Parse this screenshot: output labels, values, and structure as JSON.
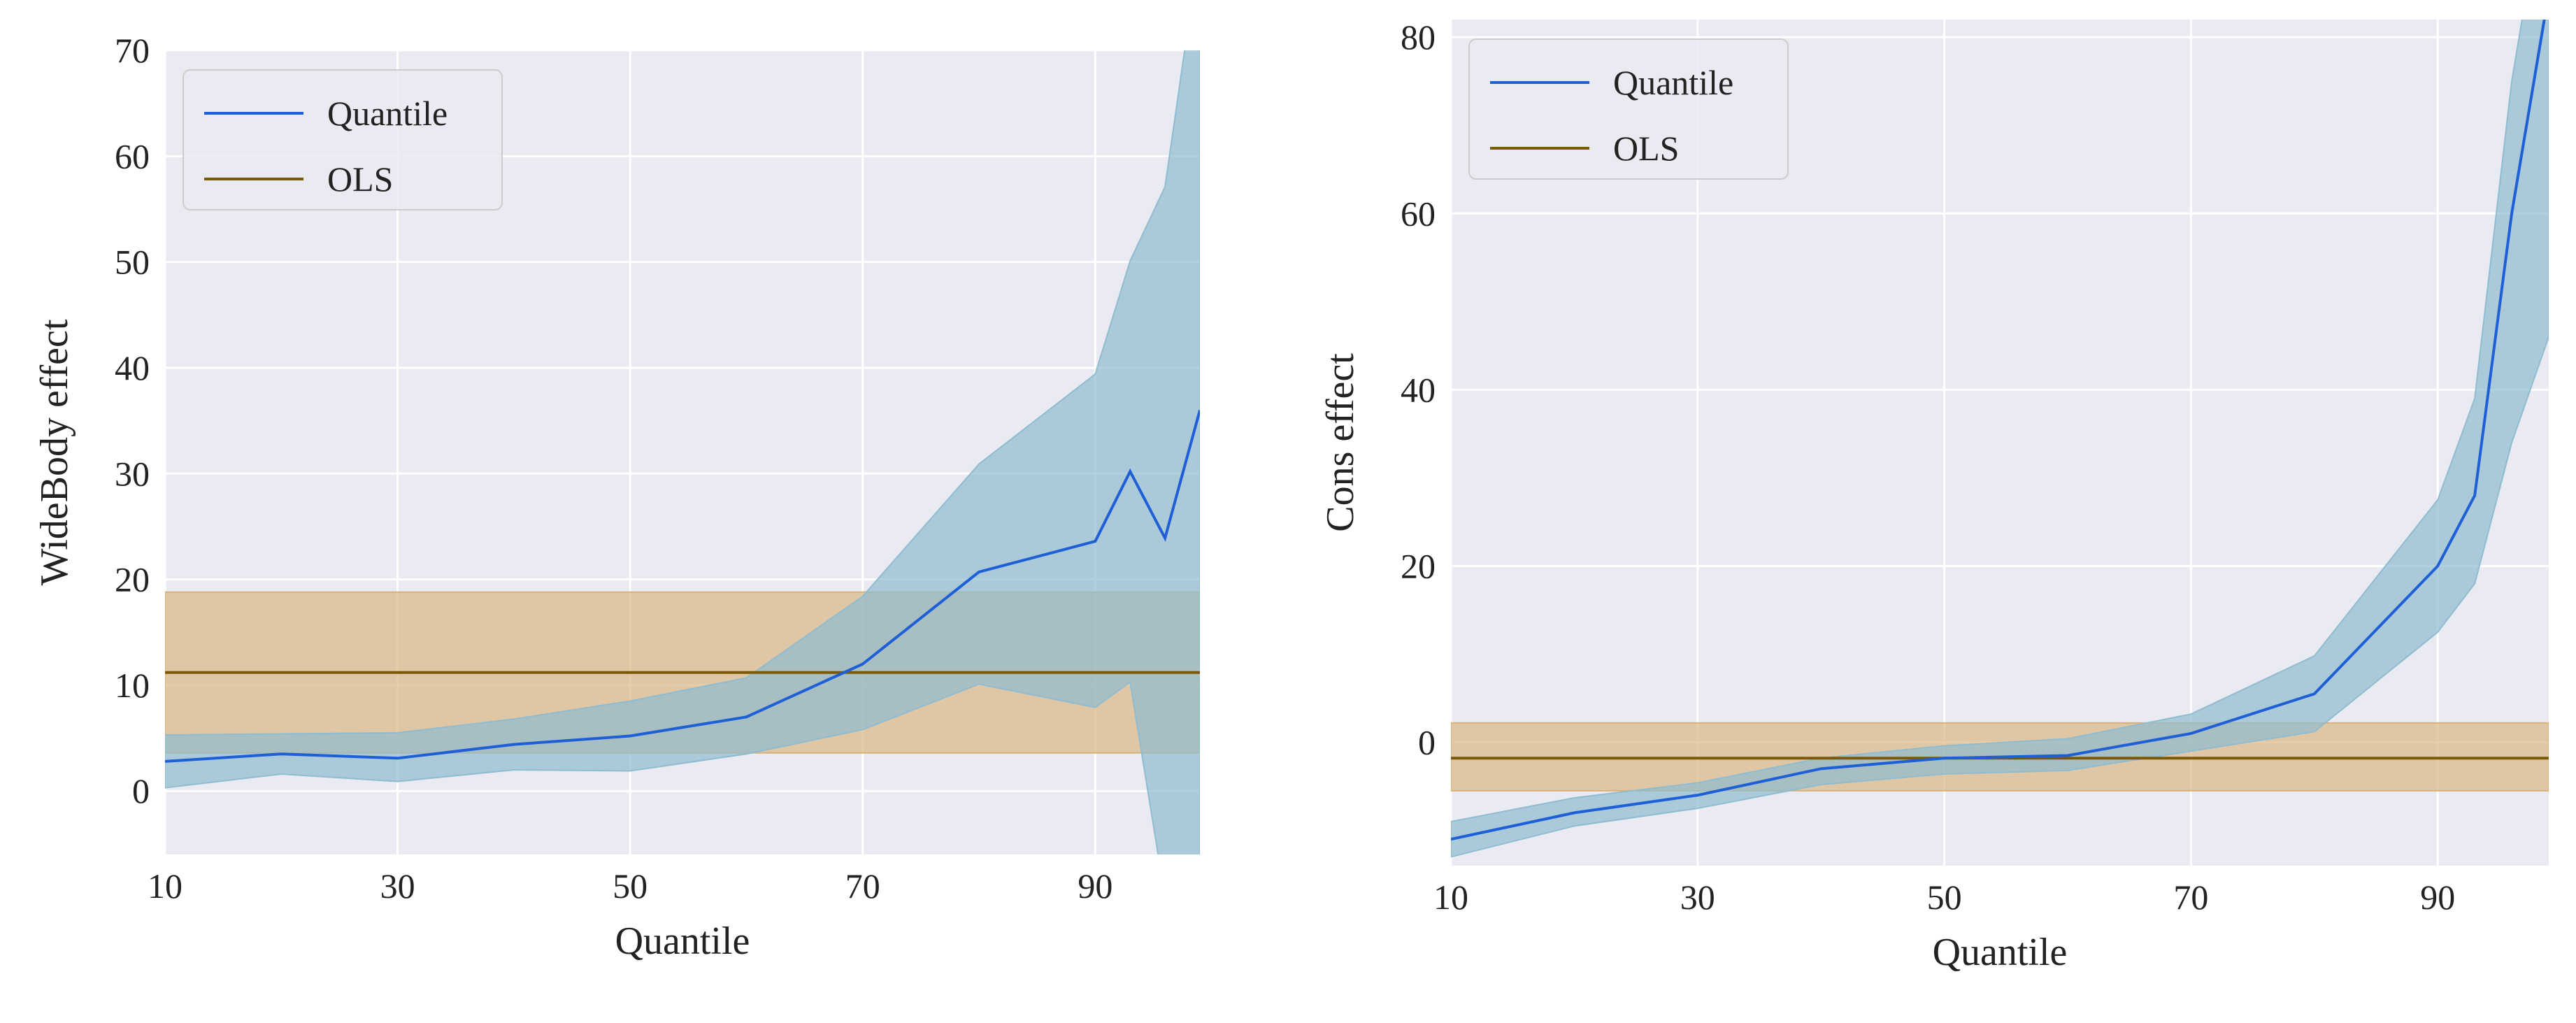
{
  "chart_data": [
    {
      "type": "line",
      "title": "",
      "xlabel": "Quantile",
      "ylabel": "WideBody effect",
      "xlim": [
        10,
        99
      ],
      "ylim": [
        -6,
        70
      ],
      "xticks": [
        10,
        30,
        50,
        70,
        90
      ],
      "yticks": [
        0,
        10,
        20,
        30,
        40,
        50,
        60,
        70
      ],
      "grid": true,
      "legend_position": "top-left",
      "colors": {
        "quantile": "#1f5fd6",
        "quantile_band": "#8fbcd0",
        "ols": "#7a5a08",
        "ols_band": "#d9b27a",
        "background": "#eaeaf2"
      },
      "series": [
        {
          "name": "Quantile",
          "x": [
            10,
            20,
            30,
            40,
            50,
            60,
            70,
            80,
            90,
            93,
            96,
            99
          ],
          "values": [
            2.8,
            3.5,
            3.1,
            4.4,
            5.2,
            7.0,
            12.0,
            20.7,
            23.6,
            30.2,
            23.9,
            36.0
          ],
          "lower": [
            0.3,
            1.6,
            0.9,
            2.0,
            1.9,
            3.5,
            5.8,
            10.1,
            7.9,
            10.3,
            -10.0,
            -10.0
          ],
          "upper": [
            5.3,
            5.4,
            5.5,
            6.8,
            8.5,
            10.7,
            18.4,
            30.9,
            39.4,
            50.1,
            57.1,
            80.0
          ]
        },
        {
          "name": "OLS",
          "x": [
            10,
            99
          ],
          "values": [
            11.2,
            11.2
          ],
          "lower": [
            3.6,
            3.6
          ],
          "upper": [
            18.8,
            18.8
          ]
        }
      ]
    },
    {
      "type": "line",
      "title": "",
      "xlabel": "Quantile",
      "ylabel": "Cons effect",
      "xlim": [
        10,
        99
      ],
      "ylim": [
        -14,
        82
      ],
      "xticks": [
        10,
        30,
        50,
        70,
        90
      ],
      "yticks": [
        0,
        20,
        40,
        60,
        80
      ],
      "grid": true,
      "legend_position": "top-left",
      "colors": {
        "quantile": "#1f5fd6",
        "quantile_band": "#8fbcd0",
        "ols": "#7a5a08",
        "ols_band": "#d9b27a",
        "background": "#eaeaf2"
      },
      "series": [
        {
          "name": "Quantile",
          "x": [
            10,
            20,
            30,
            40,
            50,
            60,
            70,
            80,
            90,
            93,
            96,
            99
          ],
          "values": [
            -11.0,
            -8.0,
            -6.0,
            -3.0,
            -1.8,
            -1.5,
            1.0,
            5.5,
            20.0,
            28.0,
            60.0,
            85.0
          ],
          "lower": [
            -13.0,
            -9.5,
            -7.5,
            -4.8,
            -3.6,
            -3.2,
            -1.0,
            1.2,
            12.5,
            18.0,
            34.0,
            46.0
          ],
          "upper": [
            -9.0,
            -6.3,
            -4.6,
            -1.8,
            -0.4,
            0.4,
            3.2,
            9.8,
            27.5,
            39.0,
            75.0,
            100.0
          ]
        },
        {
          "name": "OLS",
          "x": [
            10,
            99
          ],
          "values": [
            -1.8,
            -1.8
          ],
          "lower": [
            -5.5,
            -5.5
          ],
          "upper": [
            2.2,
            2.2
          ]
        }
      ]
    }
  ]
}
